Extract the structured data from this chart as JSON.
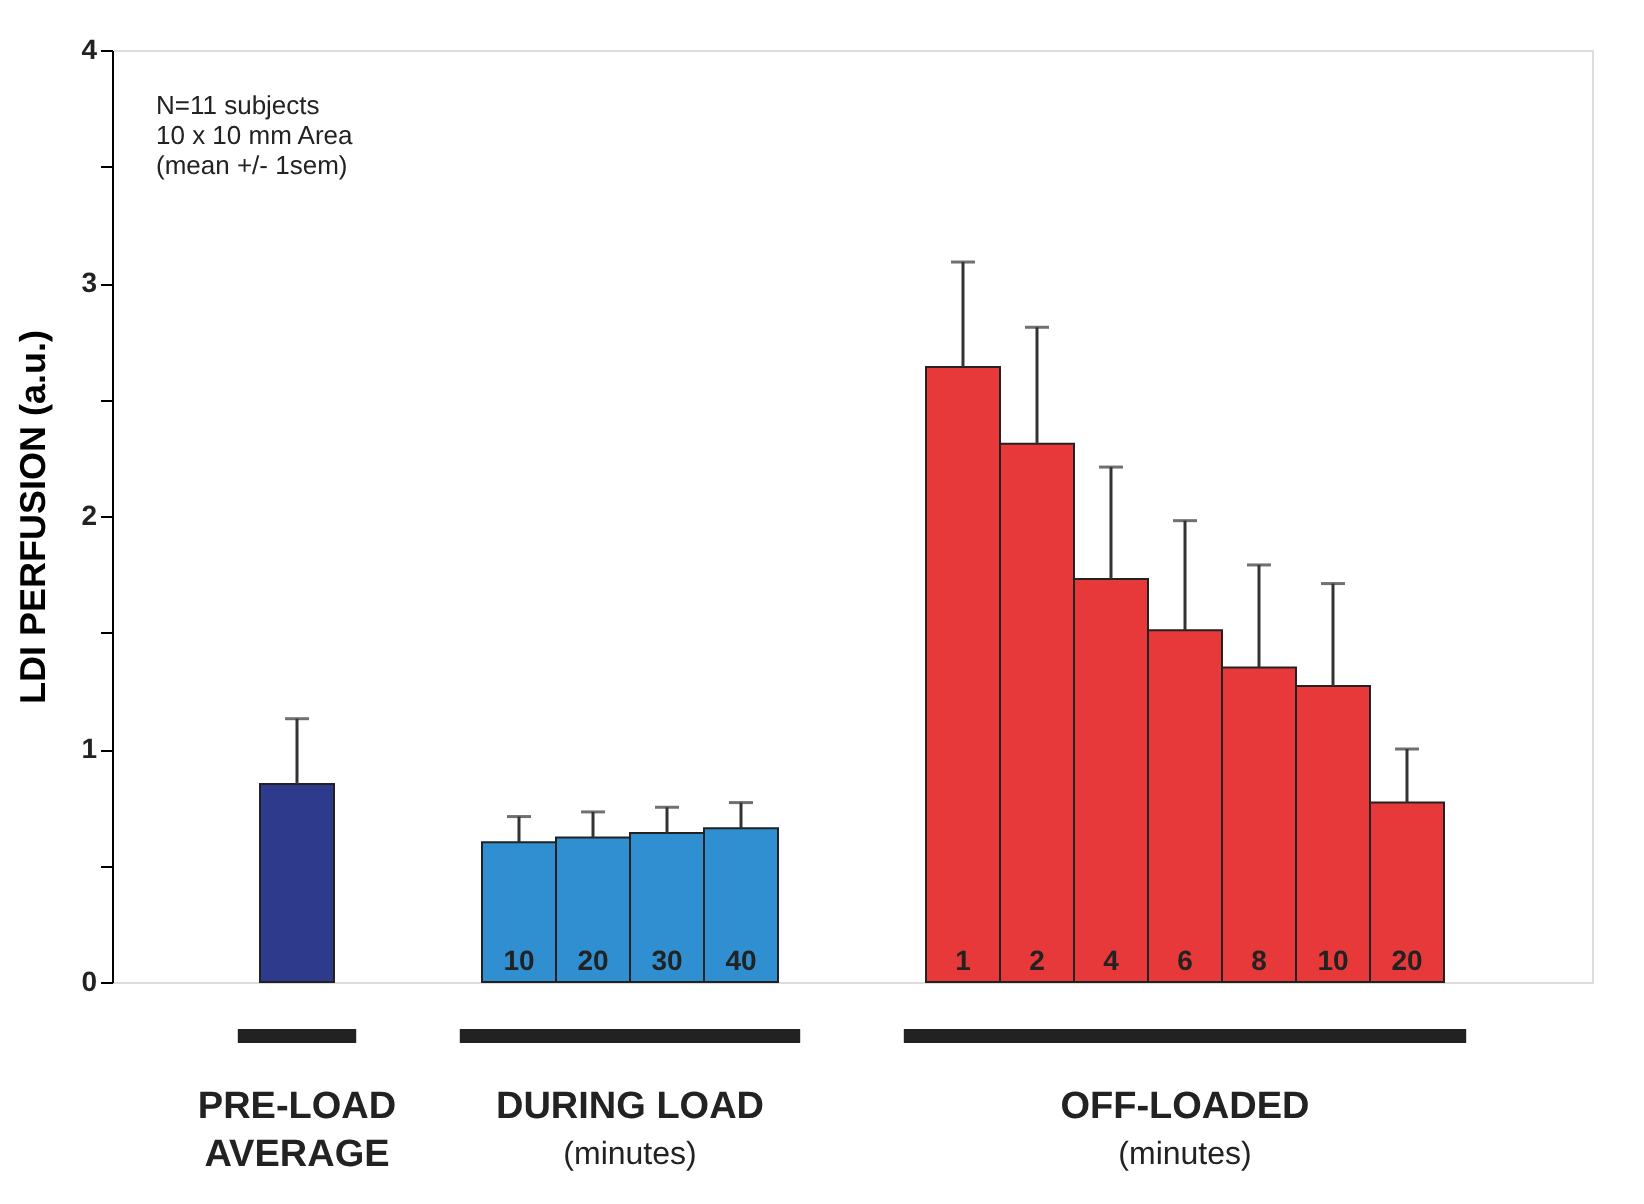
{
  "chart_data": {
    "type": "bar",
    "ylabel": "LDI PERFUSION (a.u.)",
    "categories": [
      null,
      null,
      null,
      null,
      null,
      "10",
      "20",
      "30",
      "40",
      null,
      null,
      "1",
      "2",
      "4",
      "6",
      "8",
      "10",
      "20",
      null,
      null
    ],
    "values": [
      null,
      null,
      0.85,
      null,
      null,
      0.6,
      0.62,
      0.64,
      0.66,
      null,
      null,
      2.64,
      2.31,
      1.73,
      1.51,
      1.35,
      1.27,
      0.77,
      null,
      null
    ],
    "colors": [
      null,
      null,
      "#2e3a8c",
      null,
      null,
      "#2f8fd0",
      "#2f8fd0",
      "#2f8fd0",
      "#2f8fd0",
      null,
      null,
      "#e8393a",
      "#e8393a",
      "#e8393a",
      "#e8393a",
      "#e8393a",
      "#e8393a",
      "#e8393a",
      null,
      null
    ],
    "errors": [
      null,
      null,
      [
        0.85,
        1.13
      ],
      null,
      null,
      [
        0.6,
        0.71
      ],
      [
        0.62,
        0.73
      ],
      [
        0.64,
        0.75
      ],
      [
        0.66,
        0.77
      ],
      null,
      null,
      [
        2.64,
        3.09
      ],
      [
        2.31,
        2.81
      ],
      [
        1.73,
        2.21
      ],
      [
        1.51,
        1.98
      ],
      [
        1.35,
        1.79
      ],
      [
        1.27,
        1.71
      ],
      [
        0.77,
        1.0
      ],
      null,
      null
    ],
    "ylim": [
      0,
      4
    ],
    "yticks": [
      0,
      {
        "value": 0.5,
        "label": null
      },
      1,
      {
        "value": 1.5,
        "label": null
      },
      2,
      {
        "value": 2.5,
        "label": null
      },
      3,
      {
        "value": 3.5,
        "label": null
      },
      4
    ],
    "annotations": [
      "N=11 subjects\n10 x 10 mm Area\n(mean +/- 1sem)",
      "PRE-LOAD\nAVERAGE",
      "DURING LOAD\n(minutes)",
      "OFF-LOADED\n(minutes)"
    ]
  }
}
